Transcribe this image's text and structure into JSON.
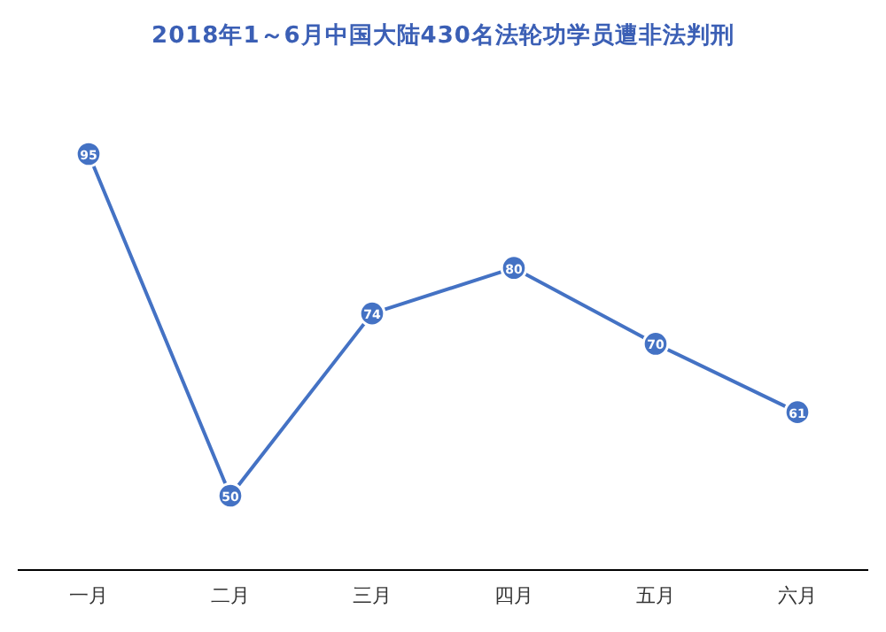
{
  "chart_data": {
    "type": "line",
    "title": "2018年1～6月中国大陆430名法轮功学员遭非法判刑",
    "categories": [
      "一月",
      "二月",
      "三月",
      "四月",
      "五月",
      "六月"
    ],
    "values": [
      95,
      50,
      74,
      80,
      70,
      61
    ],
    "color": "#4472c4",
    "data_labels": true,
    "marker": "circle"
  }
}
